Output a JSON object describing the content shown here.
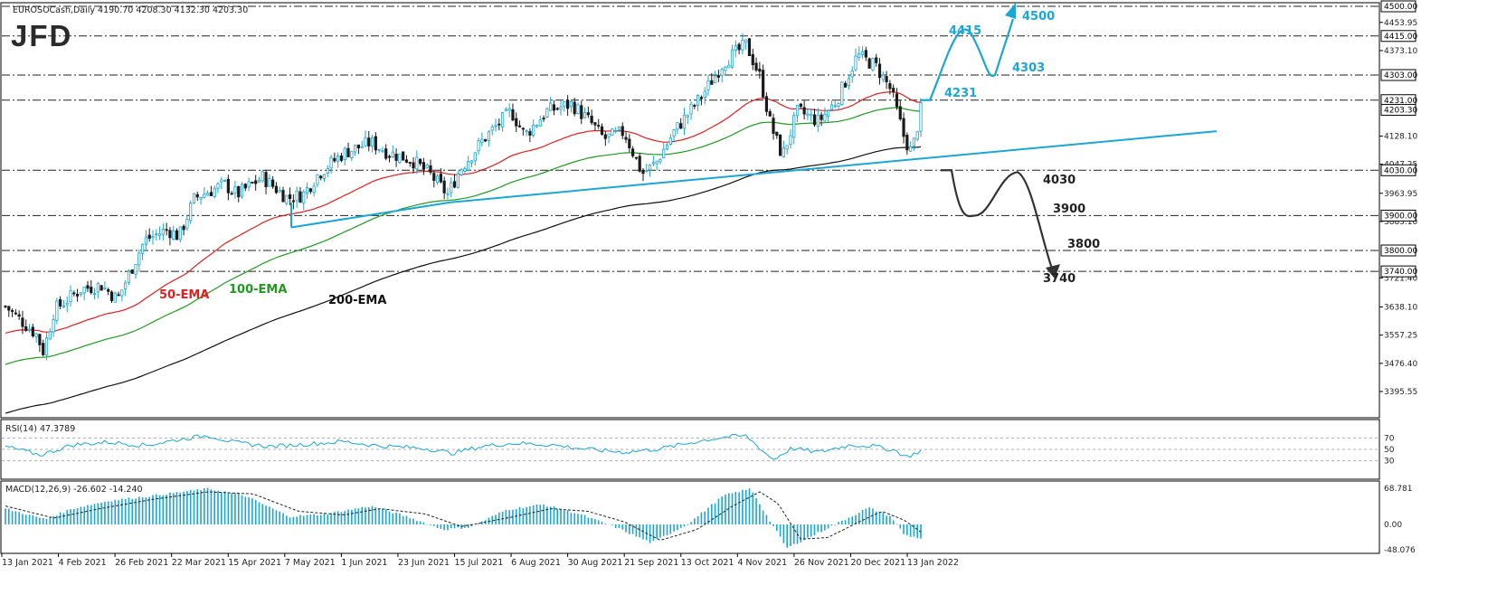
{
  "header": {
    "symbol_line": "EUROSOCash,Daily  4190.70 4208.30 4132.30 4203.30",
    "logo": "JFD"
  },
  "colors": {
    "price_up": "#1aa6d6",
    "price_down": "#1a1a1a",
    "ema50": "#e02020",
    "ema100": "#1f9a1f",
    "ema200": "#111111",
    "trendline": "#1aa6d6",
    "bull_path": "#1aa6d6",
    "bear_path": "#333333",
    "rsi": "#1aa6d6",
    "macd_hist": "#1aa6d6",
    "macd_signal": "#222222"
  },
  "price_axis": {
    "ticks": [
      "4453.95",
      "4373.10",
      "4128.10",
      "4047.25",
      "3963.95",
      "3883.10",
      "3721.40",
      "3638.10",
      "3557.25",
      "3476.40",
      "3395.55"
    ],
    "boxed_levels": [
      "4500.00",
      "4415.00",
      "4303.00",
      "4231.00",
      "4203.30",
      "4030.00",
      "3900.00",
      "3800.00",
      "3740.00"
    ]
  },
  "levels_dashed": [
    "4500.00",
    "4415.00",
    "4303.00",
    "4231.00",
    "4030.00",
    "3900.00",
    "3800.00",
    "3740.00"
  ],
  "ema_labels": {
    "ema50": "50-EMA",
    "ema100": "100-EMA",
    "ema200": "200-EMA"
  },
  "bull_labels": [
    "4231",
    "4415",
    "4303",
    "4500"
  ],
  "bear_labels": [
    "4030",
    "3900",
    "3800",
    "3740"
  ],
  "rsi": {
    "title": "RSI(14) 47.3789",
    "ticks": [
      "70",
      "50",
      "30"
    ],
    "levels": [
      70,
      50,
      30
    ]
  },
  "macd": {
    "title": "MACD(12,26,9) -26.602 -14.240",
    "ticks": [
      "68.781",
      "0.00",
      "-48.076"
    ]
  },
  "x_axis": [
    "13 Jan 2021",
    "4 Feb 2021",
    "26 Feb 2021",
    "22 Mar 2021",
    "15 Apr 2021",
    "7 May 2021",
    "1 Jun 2021",
    "23 Jun 2021",
    "15 Jul 2021",
    "6 Aug 2021",
    "30 Aug 2021",
    "21 Sep 2021",
    "13 Oct 2021",
    "4 Nov 2021",
    "26 Nov 2021",
    "20 Dec 2021",
    "13 Jan 2022"
  ],
  "chart_data": {
    "type": "candlestick",
    "title": "EUROSOCash,Daily",
    "ohlc_last": {
      "open": 4190.7,
      "high": 4208.3,
      "low": 4132.3,
      "close": 4203.3
    },
    "ylim": [
      3395.55,
      4500.0
    ],
    "close_approx": [
      {
        "date": "13 Jan 2021",
        "close": 3610
      },
      {
        "date": "4 Feb 2021",
        "close": 3660
      },
      {
        "date": "26 Feb 2021",
        "close": 3690
      },
      {
        "date": "22 Mar 2021",
        "close": 3840
      },
      {
        "date": "15 Apr 2021",
        "close": 3990
      },
      {
        "date": "7 May 2021",
        "close": 4020
      },
      {
        "date": "1 Jun 2021",
        "close": 4100
      },
      {
        "date": "23 Jun 2021",
        "close": 4080
      },
      {
        "date": "15 Jul 2021",
        "close": 4010
      },
      {
        "date": "6 Aug 2021",
        "close": 4190
      },
      {
        "date": "30 Aug 2021",
        "close": 4200
      },
      {
        "date": "21 Sep 2021",
        "close": 4080
      },
      {
        "date": "13 Oct 2021",
        "close": 4150
      },
      {
        "date": "4 Nov 2021",
        "close": 4370
      },
      {
        "date": "26 Nov 2021",
        "close": 4090
      },
      {
        "date": "20 Dec 2021",
        "close": 4190
      },
      {
        "date": "13 Jan 2022",
        "close": 4300
      },
      {
        "date": "last",
        "close": 4203.3
      }
    ],
    "series": [
      {
        "name": "50-EMA"
      },
      {
        "name": "100-EMA"
      },
      {
        "name": "200-EMA"
      }
    ],
    "levels": [
      4500,
      4415,
      4303,
      4231,
      4030,
      3900,
      3800,
      3740
    ],
    "scenarios": {
      "bullish": [
        4231,
        4415,
        4303,
        4500
      ],
      "bearish": [
        4030,
        3900,
        3800,
        3740
      ]
    },
    "rsi_last": 47.3789,
    "macd_last": {
      "macd": -26.602,
      "signal": -14.24
    }
  }
}
